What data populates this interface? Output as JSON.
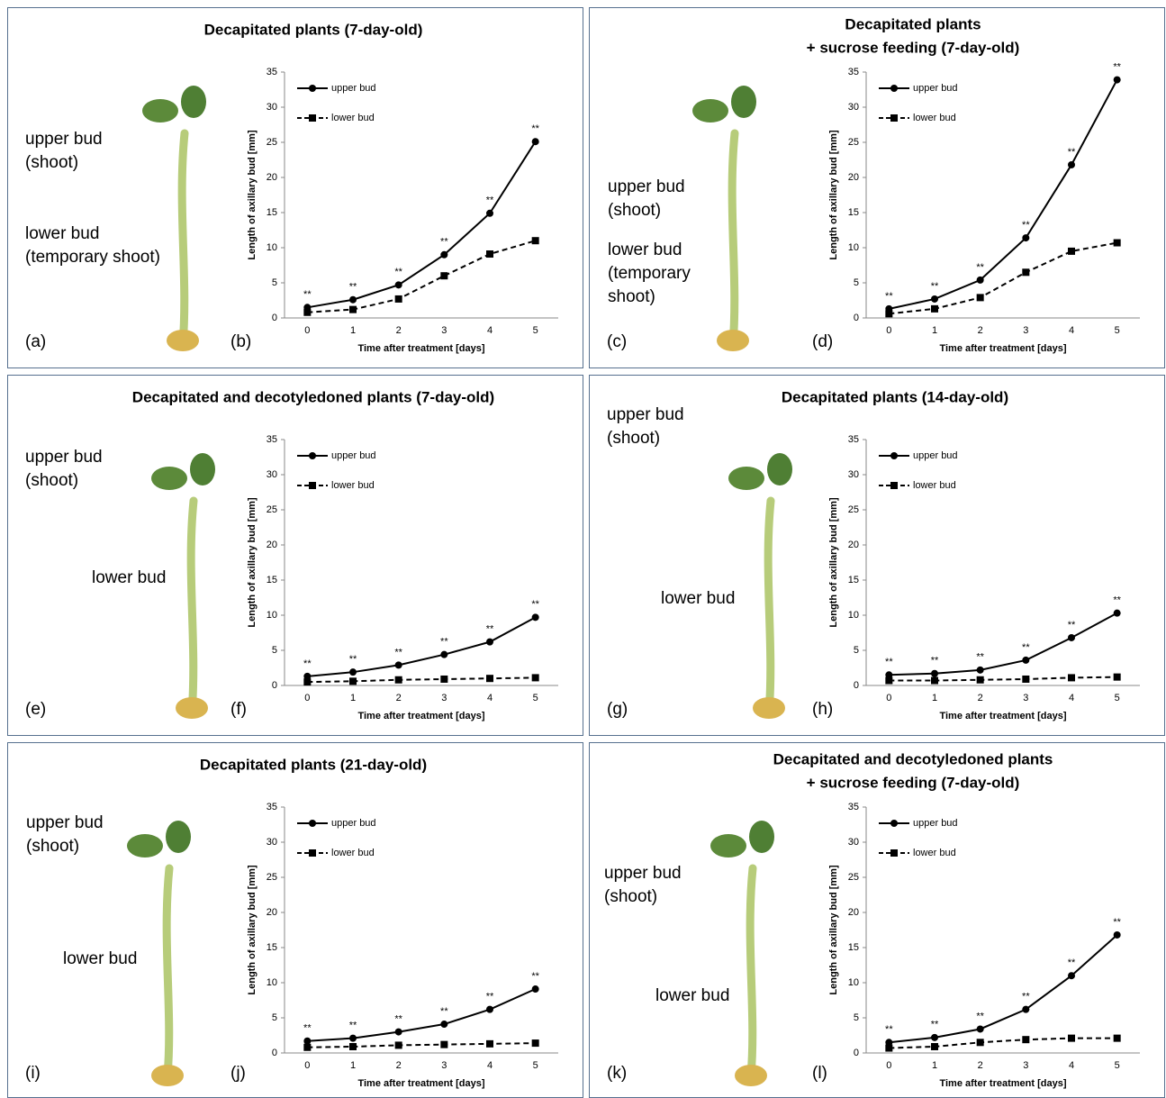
{
  "chart_data": [
    {
      "type": "line",
      "title": [
        "Decapitated plants (7-day-old)"
      ],
      "panel_letters": [
        "(a)",
        "(b)"
      ],
      "photo_labels": [
        "upper bud",
        "(shoot)",
        "lower bud",
        "(temporary shoot)"
      ],
      "xlabel": "Time after treatment [days]",
      "ylabel": "Length of axillary bud [mm]",
      "categories": [
        "0",
        "1",
        "2",
        "3",
        "4",
        "5"
      ],
      "ylim": [
        0,
        35
      ],
      "yticks": [
        0,
        5,
        10,
        15,
        20,
        25,
        30,
        35
      ],
      "annotations": [
        "**",
        "**",
        "**",
        "**",
        "**",
        "**"
      ],
      "series": [
        {
          "name": "upper bud",
          "color": "#000000",
          "values": [
            1.5,
            2.6,
            4.7,
            9.0,
            14.9,
            25.1
          ]
        },
        {
          "name": "lower bud",
          "color": "#000000",
          "values": [
            0.8,
            1.2,
            2.7,
            6.0,
            9.1,
            11.0
          ]
        }
      ]
    },
    {
      "type": "line",
      "title": [
        "Decapitated plants",
        "+ sucrose feeding (7-day-old)"
      ],
      "panel_letters": [
        "(c)",
        "(d)"
      ],
      "photo_labels": [
        "upper bud",
        "(shoot)",
        "lower bud",
        "(temporary",
        "shoot)"
      ],
      "xlabel": "Time after treatment [days]",
      "ylabel": "Length of axillary bud [mm]",
      "categories": [
        "0",
        "1",
        "2",
        "3",
        "4",
        "5"
      ],
      "ylim": [
        0,
        35
      ],
      "yticks": [
        0,
        5,
        10,
        15,
        20,
        25,
        30,
        35
      ],
      "annotations": [
        "**",
        "**",
        "**",
        "**",
        "**",
        "**"
      ],
      "series": [
        {
          "name": "upper bud",
          "color": "#000000",
          "values": [
            1.3,
            2.7,
            5.4,
            11.4,
            21.8,
            33.9
          ]
        },
        {
          "name": "lower bud",
          "color": "#000000",
          "values": [
            0.6,
            1.3,
            2.9,
            6.5,
            9.5,
            10.7
          ]
        }
      ]
    },
    {
      "type": "line",
      "title": [
        "Decapitated and decotyledoned plants (7-day-old)"
      ],
      "panel_letters": [
        "(e)",
        "(f)"
      ],
      "photo_labels": [
        "upper bud",
        "(shoot)",
        "lower bud"
      ],
      "xlabel": "Time after treatment [days]",
      "ylabel": "Length of axillary bud [mm]",
      "categories": [
        "0",
        "1",
        "2",
        "3",
        "4",
        "5"
      ],
      "ylim": [
        0,
        35
      ],
      "yticks": [
        0,
        5,
        10,
        15,
        20,
        25,
        30,
        35
      ],
      "annotations": [
        "**",
        "**",
        "**",
        "**",
        "**",
        "**"
      ],
      "series": [
        {
          "name": "upper bud",
          "color": "#000000",
          "values": [
            1.3,
            1.9,
            2.9,
            4.4,
            6.2,
            9.7
          ]
        },
        {
          "name": "lower bud",
          "color": "#000000",
          "values": [
            0.5,
            0.6,
            0.8,
            0.9,
            1.0,
            1.1
          ]
        }
      ]
    },
    {
      "type": "line",
      "title": [
        "Decapitated plants (14-day-old)"
      ],
      "panel_letters": [
        "(g)",
        "(h)"
      ],
      "photo_labels": [
        "upper bud",
        "(shoot)",
        "lower bud"
      ],
      "xlabel": "Time after treatment [days]",
      "ylabel": "Length of axillary bud [mm]",
      "categories": [
        "0",
        "1",
        "2",
        "3",
        "4",
        "5"
      ],
      "ylim": [
        0,
        35
      ],
      "yticks": [
        0,
        5,
        10,
        15,
        20,
        25,
        30,
        35
      ],
      "annotations": [
        "**",
        "**",
        "**",
        "**",
        "**",
        "**"
      ],
      "series": [
        {
          "name": "upper bud",
          "color": "#000000",
          "values": [
            1.5,
            1.7,
            2.2,
            3.6,
            6.8,
            10.3
          ]
        },
        {
          "name": "lower bud",
          "color": "#000000",
          "values": [
            0.7,
            0.7,
            0.8,
            0.9,
            1.1,
            1.2
          ]
        }
      ]
    },
    {
      "type": "line",
      "title": [
        "Decapitated plants (21-day-old)"
      ],
      "panel_letters": [
        "(i)",
        "(j)"
      ],
      "photo_labels": [
        "upper bud",
        "(shoot)",
        "lower bud"
      ],
      "xlabel": "Time after treatment [days]",
      "ylabel": "Length of axillary bud [mm]",
      "categories": [
        "0",
        "1",
        "2",
        "3",
        "4",
        "5"
      ],
      "ylim": [
        0,
        35
      ],
      "yticks": [
        0,
        5,
        10,
        15,
        20,
        25,
        30,
        35
      ],
      "annotations": [
        "**",
        "**",
        "**",
        "**",
        "**",
        "**"
      ],
      "series": [
        {
          "name": "upper bud",
          "color": "#000000",
          "values": [
            1.7,
            2.1,
            3.0,
            4.1,
            6.2,
            9.1
          ]
        },
        {
          "name": "lower bud",
          "color": "#000000",
          "values": [
            0.8,
            0.9,
            1.1,
            1.2,
            1.3,
            1.4
          ]
        }
      ]
    },
    {
      "type": "line",
      "title": [
        "Decapitated and decotyledoned plants",
        "+ sucrose feeding (7-day-old)"
      ],
      "panel_letters": [
        "(k)",
        "(l)"
      ],
      "photo_labels": [
        "upper bud",
        "(shoot)",
        "lower bud"
      ],
      "xlabel": "Time after treatment [days]",
      "ylabel": "Length of axillary bud [mm]",
      "categories": [
        "0",
        "1",
        "2",
        "3",
        "4",
        "5"
      ],
      "ylim": [
        0,
        35
      ],
      "yticks": [
        0,
        5,
        10,
        15,
        20,
        25,
        30,
        35
      ],
      "annotations": [
        "**",
        "**",
        "**",
        "**",
        "**",
        "**"
      ],
      "series": [
        {
          "name": "upper bud",
          "color": "#000000",
          "values": [
            1.5,
            2.2,
            3.4,
            6.2,
            11.0,
            16.8
          ]
        },
        {
          "name": "lower bud",
          "color": "#000000",
          "values": [
            0.7,
            0.9,
            1.5,
            1.9,
            2.1,
            2.1
          ]
        }
      ]
    }
  ]
}
